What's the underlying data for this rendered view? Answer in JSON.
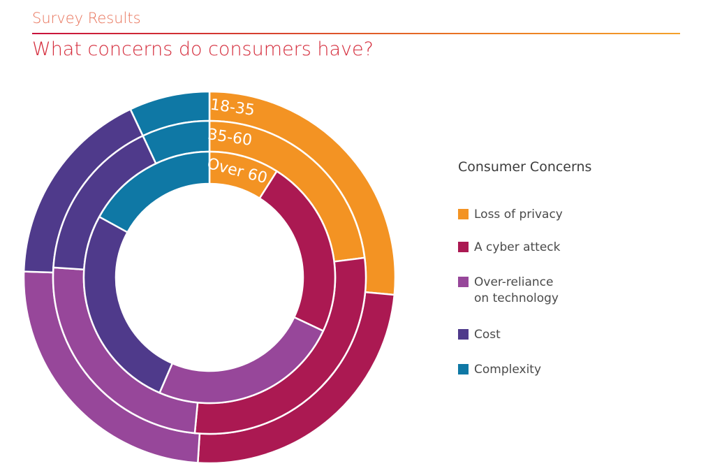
{
  "header": {
    "kicker": "Survey Results",
    "title": "What concerns do consumers have?"
  },
  "chart_data": {
    "type": "pie",
    "subtype": "multi-ring donut",
    "categories": [
      "Loss of privacy",
      "A cyber atteck",
      "Over-reliance on technology",
      "Cost",
      "Complexity"
    ],
    "colors": [
      "#f39323",
      "#ab1952",
      "#97479a",
      "#4f3a8b",
      "#0f78a5"
    ],
    "series": [
      {
        "name": "18-35",
        "values": [
          26.5,
          24.5,
          24.5,
          17.5,
          7.0
        ]
      },
      {
        "name": "35-60",
        "values": [
          23.0,
          28.5,
          24.5,
          17.0,
          7.0
        ]
      },
      {
        "name": "Over 60",
        "values": [
          9.0,
          23.0,
          24.5,
          26.5,
          17.0
        ]
      }
    ],
    "legend": {
      "title": "Consumer Concerns",
      "position": "right",
      "items": [
        "Loss of privacy",
        "A cyber atteck",
        "Over-reliance\non technology",
        "Cost",
        "Complexity"
      ]
    }
  }
}
